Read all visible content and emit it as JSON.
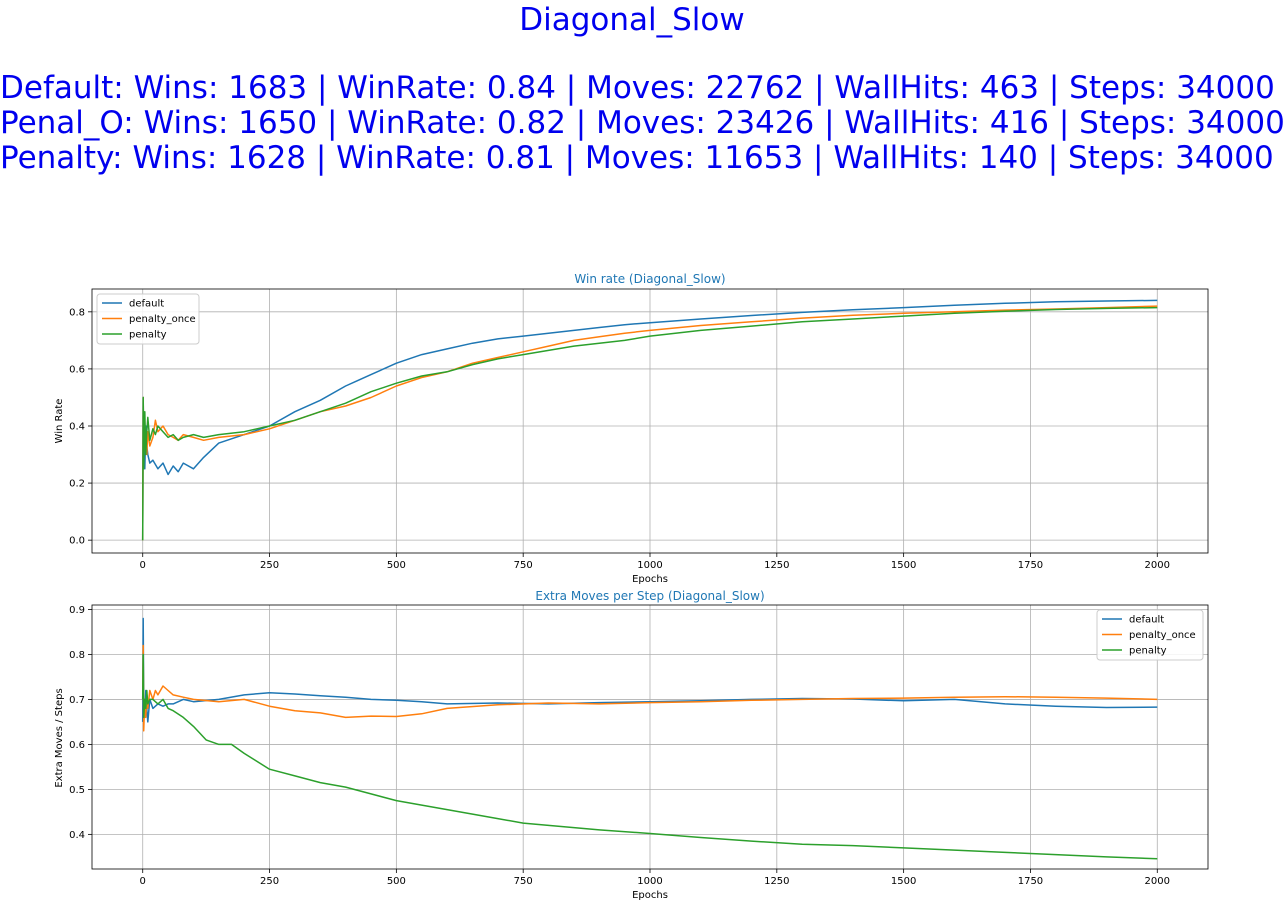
{
  "suptitle": {
    "name": "Diagonal_Slow",
    "lines": [
      "Default: Wins: 1683 | WinRate: 0.84 | Moves: 22762 | WallHits: 463 | Steps: 34000",
      "Penal_O: Wins: 1650 | WinRate: 0.82 | Moves: 23426 | WallHits: 416 | Steps: 34000",
      "Penalty: Wins: 1628 | WinRate: 0.81 | Moves: 11653 | WallHits: 140 | Steps: 34000"
    ]
  },
  "colors": {
    "default": "#1f77b4",
    "penalty_once": "#ff7f0e",
    "penalty": "#2ca02c",
    "title": "#1f77b4",
    "suptitle": "#0000ee"
  },
  "chart_data": [
    {
      "type": "line",
      "title": "Win rate (Diagonal_Slow)",
      "xlabel": "Epochs",
      "ylabel": "Win Rate",
      "xlim": [
        -100,
        2100
      ],
      "ylim": [
        -0.045,
        0.88
      ],
      "xticks": [
        0,
        250,
        500,
        750,
        1000,
        1250,
        1500,
        1750,
        2000
      ],
      "yticks": [
        0.0,
        0.2,
        0.4,
        0.6,
        0.8
      ],
      "grid": true,
      "legend": "upper-left",
      "series": [
        {
          "name": "default",
          "color": "#1f77b4",
          "x": [
            0,
            1,
            2,
            4,
            6,
            8,
            10,
            14,
            20,
            30,
            40,
            50,
            60,
            70,
            80,
            100,
            120,
            150,
            200,
            250,
            300,
            350,
            400,
            450,
            500,
            550,
            600,
            650,
            700,
            750,
            800,
            850,
            900,
            950,
            1000,
            1100,
            1200,
            1300,
            1400,
            1500,
            1600,
            1700,
            1800,
            1900,
            2000
          ],
          "y": [
            0.0,
            0.5,
            0.33,
            0.25,
            0.4,
            0.33,
            0.3,
            0.27,
            0.28,
            0.25,
            0.27,
            0.23,
            0.26,
            0.24,
            0.27,
            0.25,
            0.29,
            0.34,
            0.37,
            0.4,
            0.45,
            0.49,
            0.54,
            0.58,
            0.62,
            0.65,
            0.67,
            0.69,
            0.705,
            0.715,
            0.725,
            0.735,
            0.745,
            0.755,
            0.762,
            0.775,
            0.787,
            0.798,
            0.807,
            0.815,
            0.823,
            0.83,
            0.835,
            0.838,
            0.84
          ]
        },
        {
          "name": "penalty_once",
          "color": "#ff7f0e",
          "x": [
            0,
            1,
            2,
            4,
            6,
            8,
            10,
            14,
            20,
            25,
            30,
            40,
            50,
            60,
            70,
            80,
            100,
            120,
            150,
            200,
            250,
            300,
            350,
            400,
            450,
            500,
            550,
            600,
            650,
            700,
            750,
            800,
            850,
            900,
            950,
            1000,
            1100,
            1200,
            1300,
            1400,
            1500,
            1600,
            1700,
            1800,
            1900,
            2000
          ],
          "y": [
            0.0,
            0.5,
            0.3,
            0.4,
            0.35,
            0.3,
            0.38,
            0.33,
            0.36,
            0.42,
            0.38,
            0.4,
            0.37,
            0.36,
            0.35,
            0.37,
            0.36,
            0.35,
            0.36,
            0.37,
            0.39,
            0.42,
            0.45,
            0.47,
            0.5,
            0.54,
            0.57,
            0.59,
            0.62,
            0.64,
            0.66,
            0.68,
            0.7,
            0.713,
            0.725,
            0.735,
            0.752,
            0.765,
            0.778,
            0.788,
            0.795,
            0.8,
            0.806,
            0.81,
            0.815,
            0.82
          ]
        },
        {
          "name": "penalty",
          "color": "#2ca02c",
          "x": [
            0,
            1,
            2,
            4,
            6,
            8,
            10,
            14,
            20,
            25,
            30,
            40,
            50,
            60,
            70,
            80,
            100,
            120,
            150,
            200,
            250,
            300,
            350,
            400,
            450,
            500,
            550,
            600,
            650,
            700,
            750,
            800,
            850,
            900,
            950,
            1000,
            1100,
            1200,
            1300,
            1400,
            1500,
            1600,
            1700,
            1800,
            1900,
            2000
          ],
          "y": [
            0.0,
            0.5,
            0.25,
            0.45,
            0.3,
            0.38,
            0.43,
            0.35,
            0.39,
            0.37,
            0.4,
            0.38,
            0.36,
            0.37,
            0.35,
            0.36,
            0.37,
            0.36,
            0.37,
            0.38,
            0.4,
            0.42,
            0.45,
            0.48,
            0.52,
            0.55,
            0.575,
            0.59,
            0.615,
            0.635,
            0.65,
            0.665,
            0.68,
            0.69,
            0.7,
            0.715,
            0.735,
            0.75,
            0.765,
            0.775,
            0.785,
            0.795,
            0.802,
            0.808,
            0.812,
            0.815
          ]
        }
      ]
    },
    {
      "type": "line",
      "title": "Extra Moves per Step (Diagonal_Slow)",
      "xlabel": "Epochs",
      "ylabel": "Extra Moves / Steps",
      "xlim": [
        -100,
        2100
      ],
      "ylim": [
        0.323,
        0.91
      ],
      "xticks": [
        0,
        250,
        500,
        750,
        1000,
        1250,
        1500,
        1750,
        2000
      ],
      "yticks": [
        0.4,
        0.5,
        0.6,
        0.7,
        0.8,
        0.9
      ],
      "grid": true,
      "legend": "upper-right",
      "series": [
        {
          "name": "default",
          "color": "#1f77b4",
          "x": [
            0,
            1,
            2,
            4,
            6,
            8,
            10,
            14,
            20,
            30,
            40,
            50,
            60,
            80,
            100,
            150,
            200,
            250,
            300,
            350,
            400,
            450,
            500,
            550,
            600,
            700,
            800,
            900,
            1000,
            1100,
            1200,
            1300,
            1400,
            1500,
            1600,
            1700,
            1800,
            1900,
            2000
          ],
          "y": [
            0.65,
            0.88,
            0.7,
            0.66,
            0.72,
            0.68,
            0.65,
            0.7,
            0.68,
            0.69,
            0.685,
            0.69,
            0.69,
            0.7,
            0.695,
            0.7,
            0.71,
            0.715,
            0.712,
            0.708,
            0.705,
            0.7,
            0.698,
            0.695,
            0.69,
            0.692,
            0.69,
            0.693,
            0.695,
            0.697,
            0.7,
            0.702,
            0.701,
            0.697,
            0.7,
            0.69,
            0.685,
            0.682,
            0.683
          ]
        },
        {
          "name": "penalty_once",
          "color": "#ff7f0e",
          "x": [
            0,
            1,
            2,
            4,
            6,
            8,
            10,
            14,
            20,
            25,
            30,
            40,
            50,
            60,
            80,
            100,
            150,
            200,
            250,
            300,
            350,
            400,
            450,
            500,
            550,
            600,
            700,
            800,
            900,
            1000,
            1100,
            1200,
            1300,
            1400,
            1500,
            1600,
            1700,
            1800,
            1900,
            2000
          ],
          "y": [
            0.7,
            0.82,
            0.63,
            0.7,
            0.66,
            0.71,
            0.68,
            0.72,
            0.7,
            0.72,
            0.71,
            0.73,
            0.72,
            0.71,
            0.705,
            0.7,
            0.695,
            0.7,
            0.685,
            0.675,
            0.67,
            0.66,
            0.663,
            0.662,
            0.668,
            0.68,
            0.688,
            0.692,
            0.69,
            0.693,
            0.695,
            0.698,
            0.7,
            0.702,
            0.703,
            0.705,
            0.706,
            0.705,
            0.703,
            0.7
          ]
        },
        {
          "name": "penalty",
          "color": "#2ca02c",
          "x": [
            0,
            1,
            2,
            4,
            6,
            8,
            10,
            14,
            20,
            30,
            40,
            50,
            60,
            80,
            100,
            125,
            150,
            175,
            200,
            250,
            300,
            350,
            400,
            450,
            500,
            550,
            600,
            650,
            700,
            750,
            800,
            900,
            1000,
            1100,
            1200,
            1300,
            1400,
            1500,
            1600,
            1700,
            1800,
            1900,
            2000
          ],
          "y": [
            0.7,
            0.8,
            0.66,
            0.7,
            0.68,
            0.72,
            0.69,
            0.7,
            0.7,
            0.69,
            0.7,
            0.68,
            0.675,
            0.66,
            0.64,
            0.61,
            0.6,
            0.6,
            0.58,
            0.545,
            0.53,
            0.515,
            0.505,
            0.49,
            0.475,
            0.465,
            0.455,
            0.445,
            0.435,
            0.425,
            0.42,
            0.41,
            0.402,
            0.393,
            0.385,
            0.378,
            0.375,
            0.37,
            0.365,
            0.36,
            0.355,
            0.35,
            0.346
          ]
        }
      ]
    }
  ]
}
